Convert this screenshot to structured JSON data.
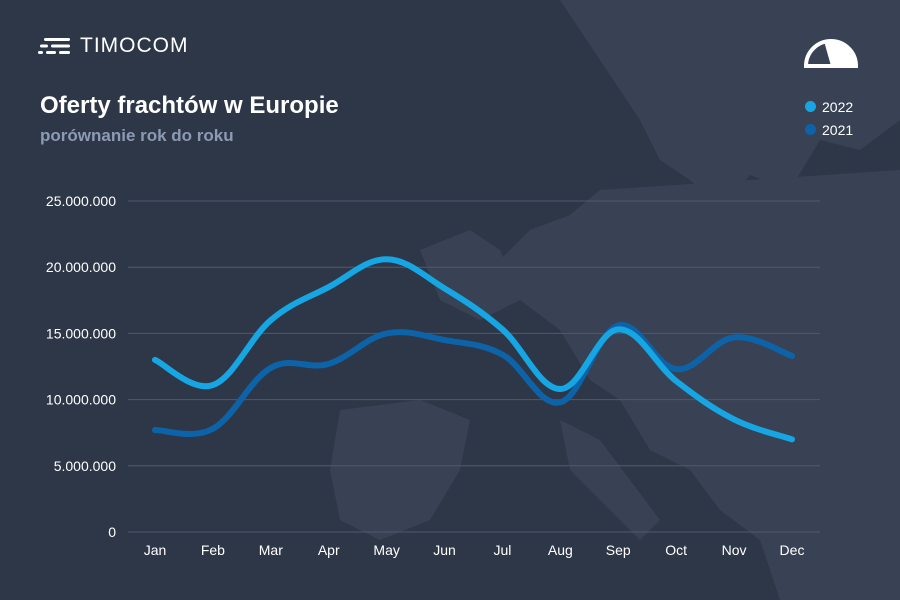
{
  "brand": {
    "name": "TIMOCOM"
  },
  "colors": {
    "background": "#2e3748",
    "series_2022": "#16a6e3",
    "series_2021": "#0d63a8",
    "grid": "#4f5a6d",
    "text": "#ffffff",
    "subtitle": "#8d9ab5"
  },
  "icons": {
    "logo": "timocom-logo-icon",
    "gauge": "gauge-icon"
  },
  "chart_data": {
    "type": "line",
    "title": "Oferty frachtów w Europie",
    "subtitle": "porównanie rok do roku",
    "categories": [
      "Jan",
      "Feb",
      "Mar",
      "Apr",
      "May",
      "Jun",
      "Jul",
      "Aug",
      "Sep",
      "Oct",
      "Nov",
      "Dec"
    ],
    "series": [
      {
        "name": "2022",
        "color": "#16a6e3",
        "values": [
          13000000,
          11100000,
          16000000,
          18500000,
          20600000,
          18400000,
          15300000,
          10800000,
          15300000,
          11400000,
          8500000,
          7000000
        ]
      },
      {
        "name": "2021",
        "color": "#0d63a8",
        "values": [
          7700000,
          7800000,
          12400000,
          12700000,
          15000000,
          14500000,
          13400000,
          9800000,
          15600000,
          12300000,
          14700000,
          13300000
        ]
      }
    ],
    "y_ticks": [
      "0",
      "5.000.000",
      "10.000.000",
      "15.000.000",
      "20.000.000",
      "25.000.000"
    ],
    "ylim": [
      0,
      25000000
    ],
    "grid": true,
    "legend_position": "top-right",
    "smooth": true
  }
}
